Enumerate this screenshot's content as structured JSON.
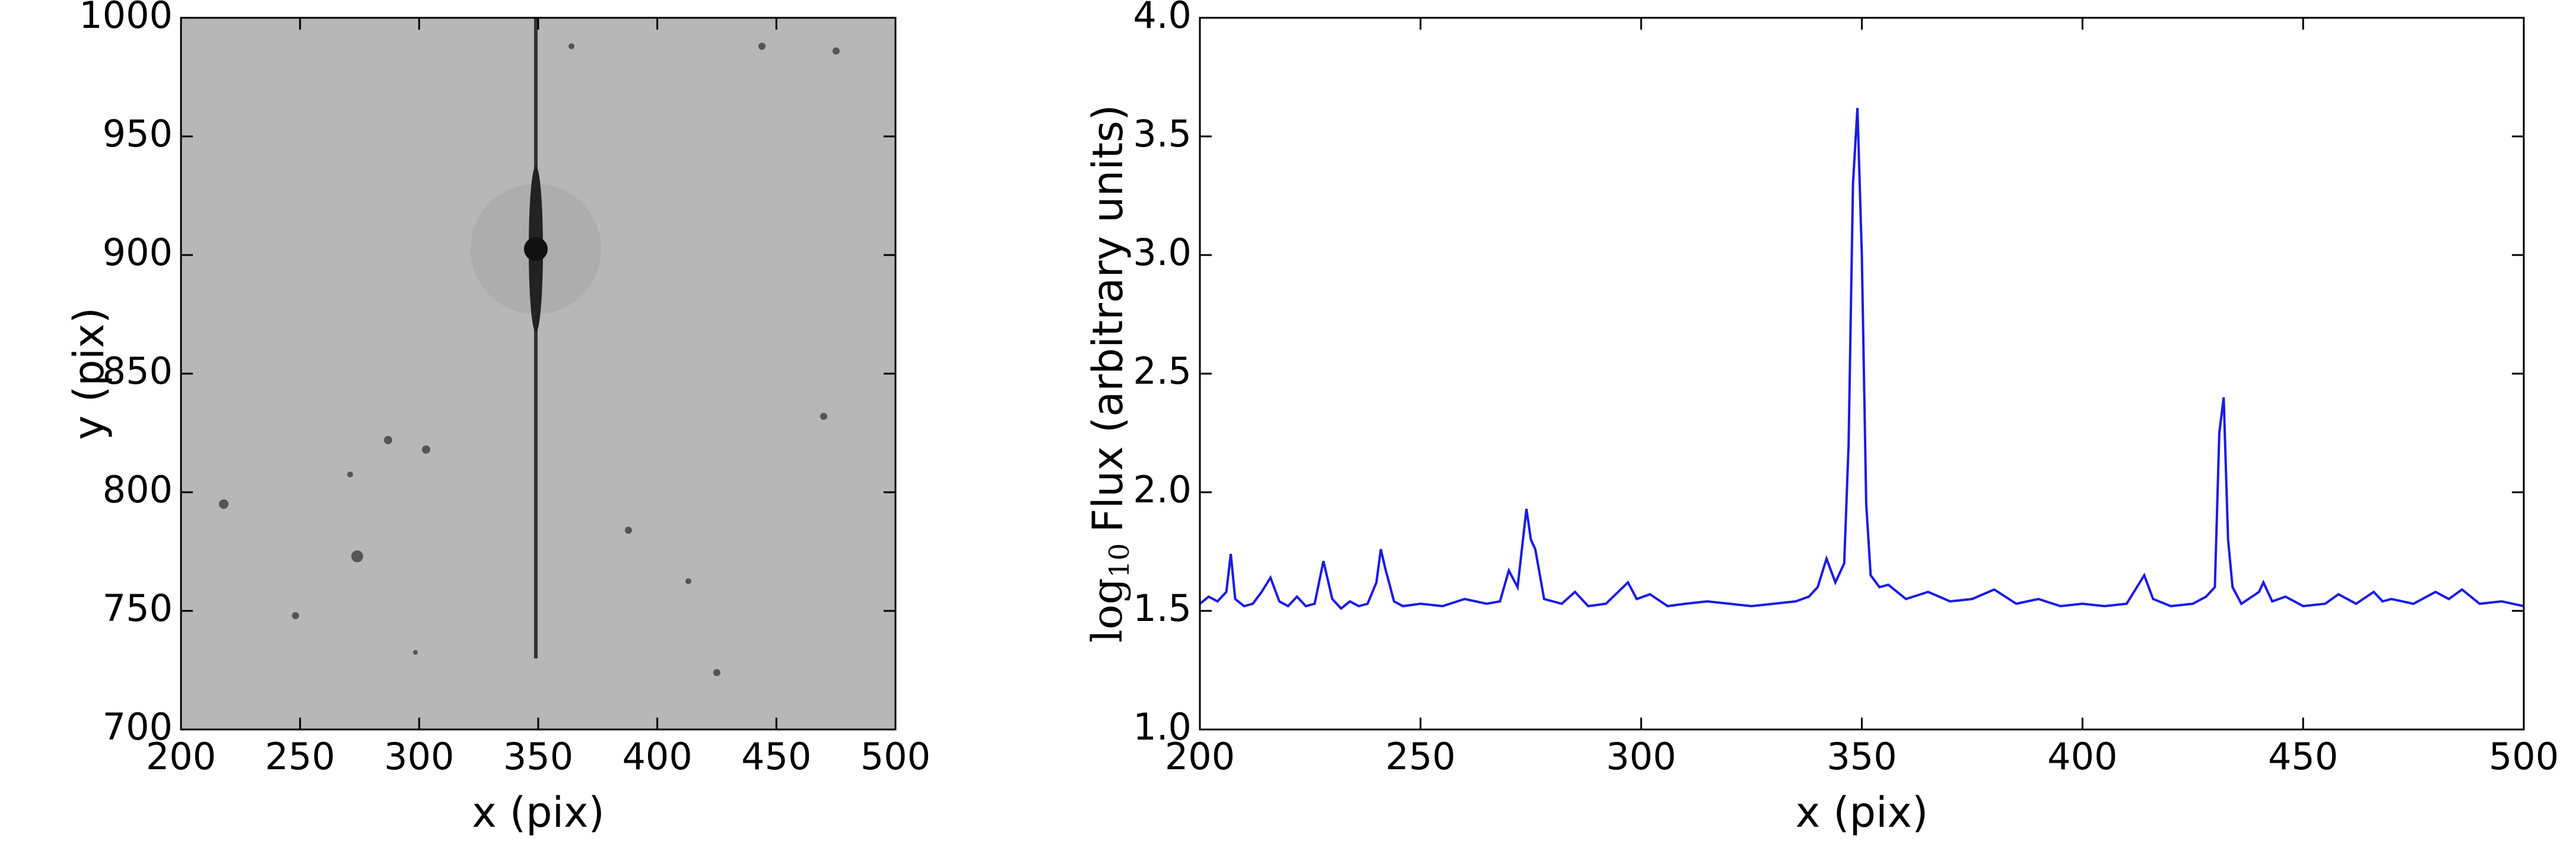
{
  "chart_data": [
    {
      "type": "image",
      "xlabel": "x (pix)",
      "ylabel": "y (pix)",
      "xlim": [
        200,
        500
      ],
      "ylim": [
        700,
        1000
      ],
      "xticks": [
        200,
        250,
        300,
        350,
        400,
        450,
        500
      ],
      "yticks": [
        700,
        750,
        800,
        850,
        900,
        950,
        1000
      ]
    },
    {
      "type": "line",
      "xlabel": "x (pix)",
      "ylabel": {
        "prefix": "log",
        "subscript": "10",
        "text": "Flux (arbitrary units)"
      },
      "xlim": [
        200,
        500
      ],
      "ylim": [
        1.0,
        4.0
      ],
      "xticks": [
        200,
        250,
        300,
        350,
        400,
        450,
        500
      ],
      "yticks": [
        {
          "value": 1.0,
          "label": "1.0"
        },
        1.5,
        {
          "value": 2.0,
          "label": "2.0"
        },
        2.5,
        {
          "value": 3.0,
          "label": "3.0"
        },
        3.5,
        {
          "value": 4.0,
          "label": "4.0"
        }
      ],
      "series": [
        {
          "color": "#1a1ae6",
          "x": [
            200,
            202,
            204,
            206,
            207,
            208,
            210,
            212,
            214,
            216,
            218,
            220,
            222,
            224,
            226,
            228,
            230,
            232,
            234,
            236,
            238,
            240,
            241,
            242,
            244,
            246,
            250,
            255,
            260,
            265,
            268,
            270,
            272,
            274,
            275,
            276,
            278,
            282,
            285,
            288,
            292,
            297,
            299,
            302,
            306,
            310,
            315,
            320,
            325,
            330,
            335,
            338,
            340,
            342,
            344,
            346,
            347,
            348,
            349,
            350,
            351,
            352,
            354,
            356,
            360,
            365,
            370,
            375,
            380,
            385,
            390,
            395,
            400,
            405,
            410,
            414,
            416,
            420,
            425,
            428,
            430,
            431,
            432,
            433,
            434,
            436,
            440,
            441,
            443,
            446,
            450,
            455,
            458,
            462,
            466,
            468,
            470,
            475,
            480,
            483,
            486,
            490,
            495,
            500
          ],
          "values": [
            1.53,
            1.56,
            1.54,
            1.58,
            1.74,
            1.55,
            1.52,
            1.53,
            1.58,
            1.64,
            1.54,
            1.52,
            1.56,
            1.52,
            1.53,
            1.71,
            1.55,
            1.51,
            1.54,
            1.52,
            1.53,
            1.62,
            1.76,
            1.68,
            1.54,
            1.52,
            1.53,
            1.52,
            1.55,
            1.53,
            1.54,
            1.67,
            1.6,
            1.93,
            1.8,
            1.76,
            1.55,
            1.53,
            1.58,
            1.52,
            1.53,
            1.62,
            1.55,
            1.57,
            1.52,
            1.53,
            1.54,
            1.53,
            1.52,
            1.53,
            1.54,
            1.56,
            1.6,
            1.72,
            1.62,
            1.7,
            2.2,
            3.3,
            3.62,
            3.0,
            1.95,
            1.65,
            1.6,
            1.61,
            1.55,
            1.58,
            1.54,
            1.55,
            1.59,
            1.53,
            1.55,
            1.52,
            1.53,
            1.52,
            1.53,
            1.65,
            1.55,
            1.52,
            1.53,
            1.56,
            1.6,
            2.25,
            2.4,
            1.8,
            1.6,
            1.53,
            1.58,
            1.62,
            1.54,
            1.56,
            1.52,
            1.53,
            1.57,
            1.53,
            1.58,
            1.54,
            1.55,
            1.53,
            1.58,
            1.55,
            1.59,
            1.53,
            1.54,
            1.52
          ]
        }
      ]
    }
  ]
}
